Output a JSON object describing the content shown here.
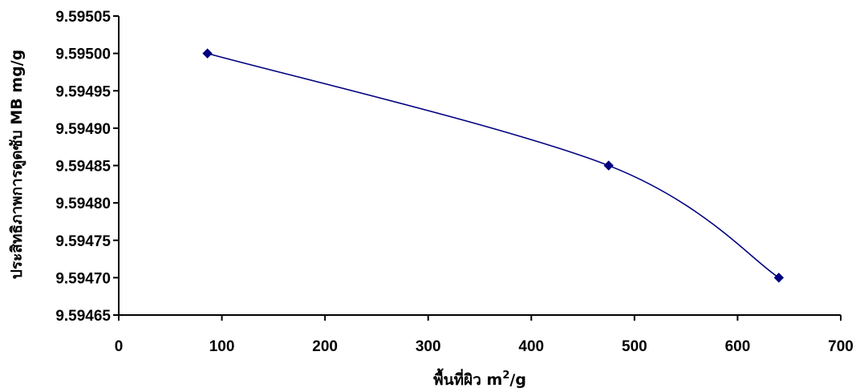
{
  "chart_data": {
    "type": "line",
    "title": "",
    "xlabel": "พื้นที่ผิว m",
    "xlabel_sup": "2",
    "xlabel_suffix": "/g",
    "ylabel": "ประสิทธิภาพการดูดซับ MB mg/g",
    "xlim": [
      0,
      700
    ],
    "ylim": [
      9.59465,
      9.59505
    ],
    "x_ticks": [
      0,
      100,
      200,
      300,
      400,
      500,
      600,
      700
    ],
    "y_ticks": [
      9.59465,
      9.5947,
      9.59475,
      9.5948,
      9.59485,
      9.5949,
      9.59495,
      9.595,
      9.59505
    ],
    "y_tick_decimals": 5,
    "grid": false,
    "series": [
      {
        "color": "#000080",
        "marker": "diamond",
        "points": [
          {
            "x": 86,
            "y": 9.595
          },
          {
            "x": 475,
            "y": 9.59485
          },
          {
            "x": 640,
            "y": 9.5947
          }
        ]
      }
    ]
  }
}
